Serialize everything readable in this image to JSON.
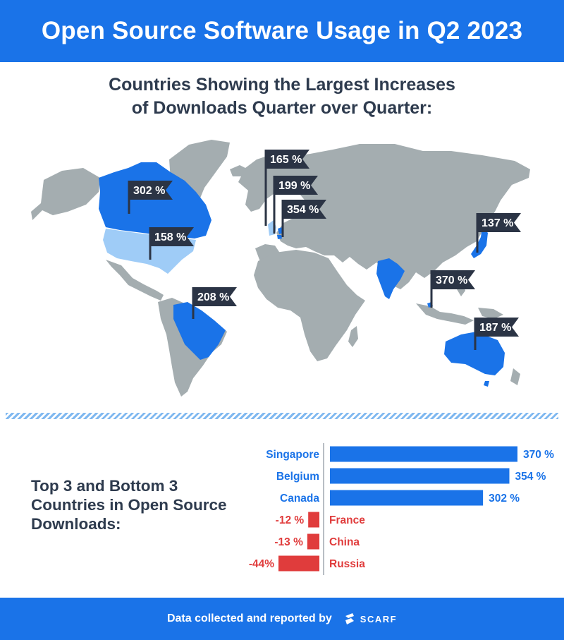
{
  "header": {
    "title": "Open Source Software Usage in Q2 2023"
  },
  "map_section": {
    "subtitle_line1": "Countries Showing the Largest Increases",
    "subtitle_line2": "of Downloads Quarter over Quarter:"
  },
  "map_flags": [
    {
      "label": "302 %",
      "country": "Canada"
    },
    {
      "label": "158 %",
      "country": "United States"
    },
    {
      "label": "165 %",
      "country": "United Kingdom"
    },
    {
      "label": "199 %",
      "country": "Netherlands"
    },
    {
      "label": "354 %",
      "country": "Belgium"
    },
    {
      "label": "137 %",
      "country": "Japan"
    },
    {
      "label": "370 %",
      "country": "Singapore"
    },
    {
      "label": "208 %",
      "country": "Brazil"
    },
    {
      "label": "187 %",
      "country": "Australia"
    }
  ],
  "bottom_section": {
    "title_line1": "Top 3 and Bottom 3",
    "title_line2": "Countries in Open Source",
    "title_line3": "Downloads:"
  },
  "chart_data": {
    "type": "bar",
    "orientation": "horizontal",
    "categories": [
      "Singapore",
      "Belgium",
      "Canada",
      "France",
      "China",
      "Russia"
    ],
    "values": [
      370,
      354,
      302,
      -12,
      -13,
      -44
    ],
    "value_labels": [
      "370 %",
      "354 %",
      "302 %",
      "-12 %",
      "-13 %",
      "-44%"
    ],
    "title": "",
    "xlabel": "",
    "ylabel": "",
    "grid": false,
    "legend": "none"
  },
  "colors": {
    "brand_blue": "#1a73e8",
    "positive_bar": "#1a73e8",
    "negative_bar": "#e03c3c",
    "map_highlight": "#1a73e8",
    "map_light_highlight": "#9fccf7",
    "map_land": "#a4adb0",
    "flag": "#2b3445",
    "heading_text": "#2e3b4e"
  },
  "footer": {
    "credit": "Data collected and reported by",
    "logo_text": "SCARF",
    "logo_icon": "scarf-logo-icon"
  }
}
